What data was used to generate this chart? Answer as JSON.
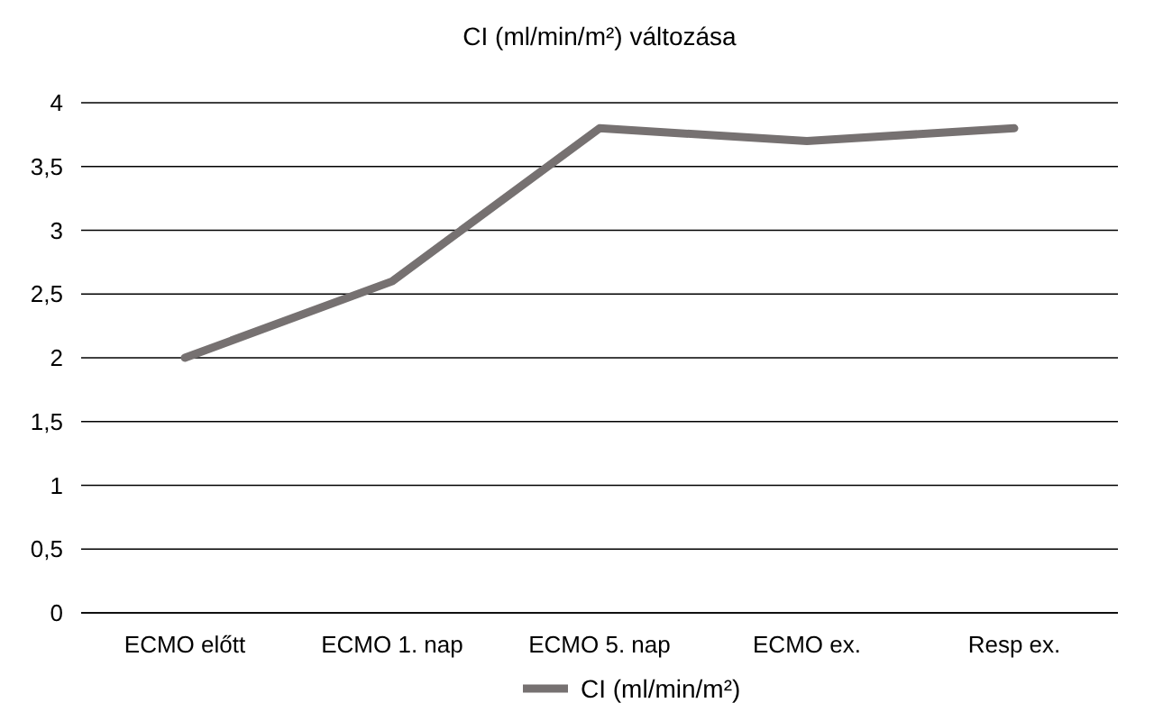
{
  "chart_data": {
    "type": "line",
    "title": "CI (ml/min/m²) változása",
    "categories": [
      "ECMO előtt",
      "ECMO 1. nap",
      "ECMO 5. nap",
      "ECMO ex.",
      "Resp ex."
    ],
    "series": [
      {
        "name": "CI (ml/min/m²)",
        "color": "#767171",
        "values": [
          2,
          2.6,
          3.8,
          3.7,
          3.8
        ]
      }
    ],
    "ylim": [
      0,
      4
    ],
    "yticks": [
      0,
      {
        "value": 0.5,
        "label": "0,5"
      },
      1,
      {
        "value": 1.5,
        "label": "1,5"
      },
      2,
      {
        "value": 2.5,
        "label": "2,5"
      },
      3,
      {
        "value": 3.5,
        "label": "3,5"
      },
      4
    ],
    "grid": "y",
    "legend": "bottom",
    "marker": "none",
    "line_style": "solid"
  }
}
